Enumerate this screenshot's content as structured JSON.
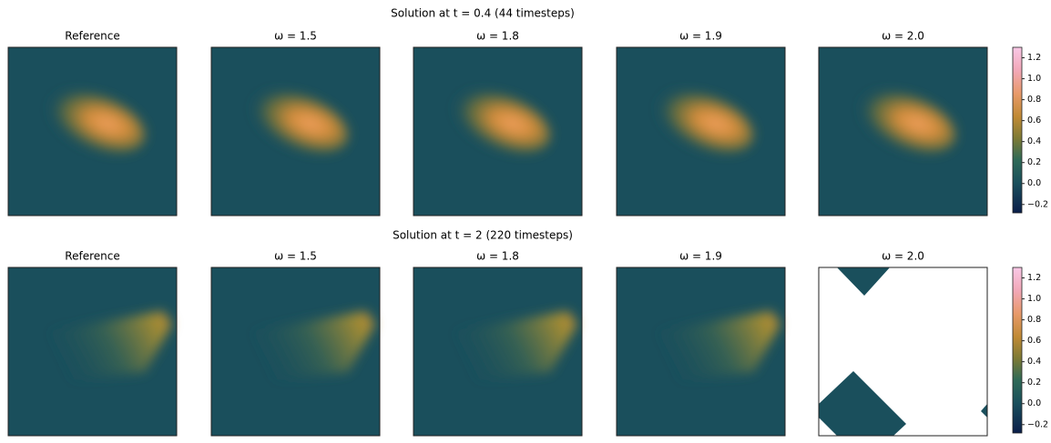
{
  "chart_data": [
    {
      "type": "heatmap",
      "title": "Solution at t = 0.4 (44 timesteps)",
      "panels": [
        "Reference",
        "ω = 1.5",
        "ω = 1.8",
        "ω = 1.9",
        "ω = 2.0"
      ],
      "ylim": [
        -0.28,
        1.3
      ],
      "yticks": [
        {
          "value": -0.2,
          "label": "−0.2"
        },
        {
          "value": 0,
          "label": "0.0"
        },
        0.2,
        0.4,
        0.6,
        0.8,
        {
          "value": 1,
          "label": "1.0"
        },
        1.2
      ]
    },
    {
      "type": "heatmap",
      "title": "Solution at t = 2 (220 timesteps)",
      "panels": [
        "Reference",
        "ω = 1.5",
        "ω = 1.8",
        "ω = 1.9",
        "ω = 2.0"
      ],
      "ylim": [
        -0.28,
        1.3
      ],
      "yticks": [
        {
          "value": -0.2,
          "label": "−0.2"
        },
        {
          "value": 0,
          "label": "0.0"
        },
        0.2,
        0.4,
        0.6,
        0.8,
        {
          "value": 1,
          "label": "1.0"
        },
        1.2
      ]
    }
  ]
}
